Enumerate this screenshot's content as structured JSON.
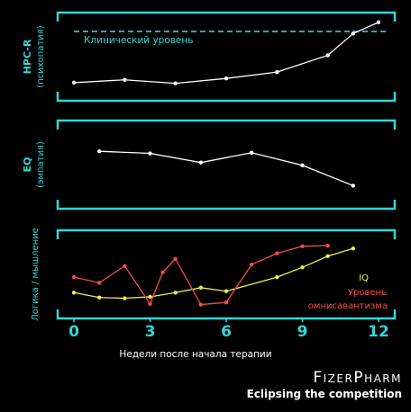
{
  "chart_data": [
    {
      "type": "line",
      "ylabel": [
        "HPC-R",
        "(психопатия)"
      ],
      "xlim": [
        0,
        12
      ],
      "annotation": "Клинический уровень",
      "reference_level": 0.86,
      "ylim": [
        0,
        1
      ],
      "series": [
        {
          "color": "#ffffff",
          "x": [
            0,
            2,
            4,
            6,
            8,
            10,
            11,
            12
          ],
          "y": [
            0.13,
            0.17,
            0.12,
            0.19,
            0.28,
            0.52,
            0.83,
            0.99
          ]
        }
      ]
    },
    {
      "type": "line",
      "ylabel": [
        "EQ",
        "(эмпатия)"
      ],
      "xlim": [
        0,
        12
      ],
      "ylim": [
        0,
        1
      ],
      "series": [
        {
          "color": "#ffffff",
          "x": [
            1,
            3,
            5,
            7,
            9,
            11
          ],
          "y": [
            0.69,
            0.66,
            0.53,
            0.67,
            0.49,
            0.2
          ]
        }
      ]
    },
    {
      "type": "line",
      "ylabel": [
        "Логика / мышление"
      ],
      "xlim": [
        0,
        12
      ],
      "ylim": [
        0,
        1
      ],
      "xticks": [
        0,
        3,
        6,
        9,
        12
      ],
      "xticklabels": [
        "0",
        "3",
        "6",
        "9",
        "12"
      ],
      "xlabel": "Недели после начала терапии",
      "series": [
        {
          "name": "IQ",
          "color": "#f0ee4a",
          "x": [
            0,
            1,
            2,
            3,
            4,
            5,
            6,
            8,
            9,
            10,
            11
          ],
          "y": [
            0.24,
            0.17,
            0.16,
            0.18,
            0.24,
            0.31,
            0.26,
            0.46,
            0.6,
            0.76,
            0.87
          ]
        },
        {
          "name": "Уровень омнисавантизма",
          "color": "#f04d4d",
          "x": [
            0,
            1,
            2,
            3,
            3.5,
            4,
            5,
            6,
            7,
            8,
            9,
            10
          ],
          "y": [
            0.46,
            0.38,
            0.62,
            0.08,
            0.53,
            0.72,
            0.07,
            0.1,
            0.64,
            0.8,
            0.9,
            0.91
          ]
        }
      ]
    }
  ],
  "brand": {
    "name": "FizerPharm",
    "slogan": "Eclipsing the competition"
  },
  "colors": {
    "frame": "#33d6d6",
    "background": "#000000"
  }
}
